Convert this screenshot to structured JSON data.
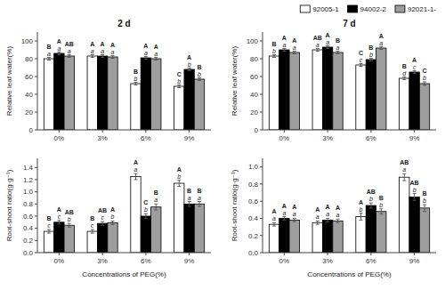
{
  "chart_data": [
    {
      "type": "bar",
      "title": "2 d",
      "y_label": "Relative leaf water(%)",
      "categories": [
        "0%",
        "3%",
        "6%",
        "9%"
      ],
      "ylim": [
        0,
        110
      ],
      "yticks": [
        0,
        20,
        40,
        60,
        80,
        100
      ],
      "grid": false,
      "series": [
        {
          "name": "92005-1",
          "color": "#ffffff",
          "values": [
            80,
            83,
            52,
            49
          ],
          "errors": [
            1.5,
            1.5,
            1.5,
            1.5
          ],
          "labels_upper": [
            "B",
            "A",
            "B",
            "C"
          ],
          "labels_lower": [
            "a",
            "a",
            "b",
            "b"
          ]
        },
        {
          "name": "94002-2",
          "color": "#000000",
          "values": [
            86,
            83,
            81,
            68
          ],
          "errors": [
            1.5,
            1.5,
            1.5,
            1.5
          ],
          "labels_upper": [
            "A",
            "A",
            "A",
            "A"
          ],
          "labels_lower": [
            "a",
            "a",
            "a",
            "b"
          ]
        },
        {
          "name": "92021-1-",
          "color": "#9e9e9e",
          "values": [
            83,
            82,
            80,
            57
          ],
          "errors": [
            1.5,
            1.5,
            1.5,
            1.5
          ],
          "labels_upper": [
            "AB",
            "A",
            "A",
            "B"
          ],
          "labels_lower": [
            "a",
            "a",
            "a",
            "b"
          ]
        }
      ]
    },
    {
      "type": "bar",
      "title": "7 d",
      "y_label": "Relative leaf water(%)",
      "categories": [
        "0%",
        "3%",
        "6%",
        "9%"
      ],
      "ylim": [
        0,
        110
      ],
      "yticks": [
        0,
        20,
        40,
        60,
        80,
        100
      ],
      "grid": false,
      "legend": "top",
      "series": [
        {
          "name": "92005-1",
          "color": "#ffffff",
          "values": [
            83,
            90,
            73,
            58
          ],
          "errors": [
            1.5,
            1.5,
            1.5,
            1.5
          ],
          "labels_upper": [
            "B",
            "AB",
            "C",
            "B"
          ],
          "labels_lower": [
            "b",
            "a",
            "c",
            "d"
          ]
        },
        {
          "name": "94002-2",
          "color": "#000000",
          "values": [
            90,
            93,
            79,
            65
          ],
          "errors": [
            1.5,
            1.5,
            1.5,
            1.5
          ],
          "labels_upper": [
            "A",
            "A",
            "B",
            "A"
          ],
          "labels_lower": [
            "a",
            "a",
            "b",
            "c"
          ]
        },
        {
          "name": "92021-1-",
          "color": "#9e9e9e",
          "values": [
            87,
            87,
            92,
            52
          ],
          "errors": [
            1.5,
            1.5,
            1.5,
            2.0
          ],
          "labels_upper": [
            "A",
            "B",
            "A",
            "C"
          ],
          "labels_lower": [
            "a",
            "a",
            "a",
            "b"
          ]
        }
      ]
    },
    {
      "type": "bar",
      "y_label": "Root-shoot ratio(g·g⁻¹)",
      "x_label": "Concentrations of PEG(%)",
      "categories": [
        "0%",
        "3%",
        "6%",
        "9%"
      ],
      "ylim": [
        0,
        1.55
      ],
      "yticks": [
        {
          "value": 0.0,
          "label": "0.0"
        },
        0.2,
        0.4,
        0.6,
        0.8,
        {
          "value": 1.0,
          "label": "1.0"
        },
        1.2,
        1.4
      ],
      "grid": false,
      "series": [
        {
          "name": "92005-1",
          "color": "#ffffff",
          "values": [
            0.35,
            0.35,
            1.25,
            1.14
          ],
          "errors": [
            0.03,
            0.03,
            0.05,
            0.05
          ],
          "labels_upper": [
            "B",
            "B",
            "A",
            "A"
          ],
          "labels_lower": [
            "c",
            "c",
            "a",
            "b"
          ]
        },
        {
          "name": "94002-2",
          "color": "#000000",
          "values": [
            0.5,
            0.48,
            0.6,
            0.8
          ],
          "errors": [
            0.03,
            0.03,
            0.04,
            0.04
          ],
          "labels_upper": [
            "A",
            "AB",
            "C",
            "B"
          ],
          "labels_lower": [
            "c",
            "c",
            "b",
            "a"
          ]
        },
        {
          "name": "92021-1-",
          "color": "#9e9e9e",
          "values": [
            0.45,
            0.49,
            0.75,
            0.8
          ],
          "errors": [
            0.03,
            0.03,
            0.05,
            0.04
          ],
          "labels_upper": [
            "AB",
            "A",
            "B",
            "B"
          ],
          "labels_lower": [
            "b",
            "b",
            "a",
            "a"
          ]
        }
      ]
    },
    {
      "type": "bar",
      "y_label": "Root-shoot ratio(g·g⁻¹)",
      "x_label": "Concentrations of PEG(%)",
      "categories": [
        "0%",
        "3%",
        "6%",
        "9%"
      ],
      "ylim": [
        0,
        1.1
      ],
      "yticks": [
        {
          "value": 0.0,
          "label": "0.0"
        },
        0.2,
        0.4,
        0.6,
        0.8,
        {
          "value": 1.0,
          "label": "1.0"
        }
      ],
      "grid": false,
      "series": [
        {
          "name": "92005-1",
          "color": "#ffffff",
          "values": [
            0.33,
            0.35,
            0.42,
            0.88
          ],
          "errors": [
            0.02,
            0.02,
            0.04,
            0.04
          ],
          "labels_upper": [
            "A",
            "A",
            "A",
            "AB"
          ],
          "labels_lower": [
            "a",
            "a",
            "b",
            "a"
          ]
        },
        {
          "name": "94002-2",
          "color": "#000000",
          "values": [
            0.4,
            0.38,
            0.55,
            0.65
          ],
          "errors": [
            0.02,
            0.02,
            0.03,
            0.04
          ],
          "labels_upper": [
            "A",
            "A",
            "AB",
            "AB"
          ],
          "labels_lower": [
            "a",
            "a",
            "b",
            "b"
          ]
        },
        {
          "name": "92021-1-",
          "color": "#9e9e9e",
          "values": [
            0.38,
            0.37,
            0.48,
            0.52
          ],
          "errors": [
            0.02,
            0.02,
            0.03,
            0.04
          ],
          "labels_upper": [
            "A",
            "A",
            "B",
            "B"
          ],
          "labels_lower": [
            "a",
            "a",
            "b",
            "b"
          ]
        }
      ]
    }
  ]
}
